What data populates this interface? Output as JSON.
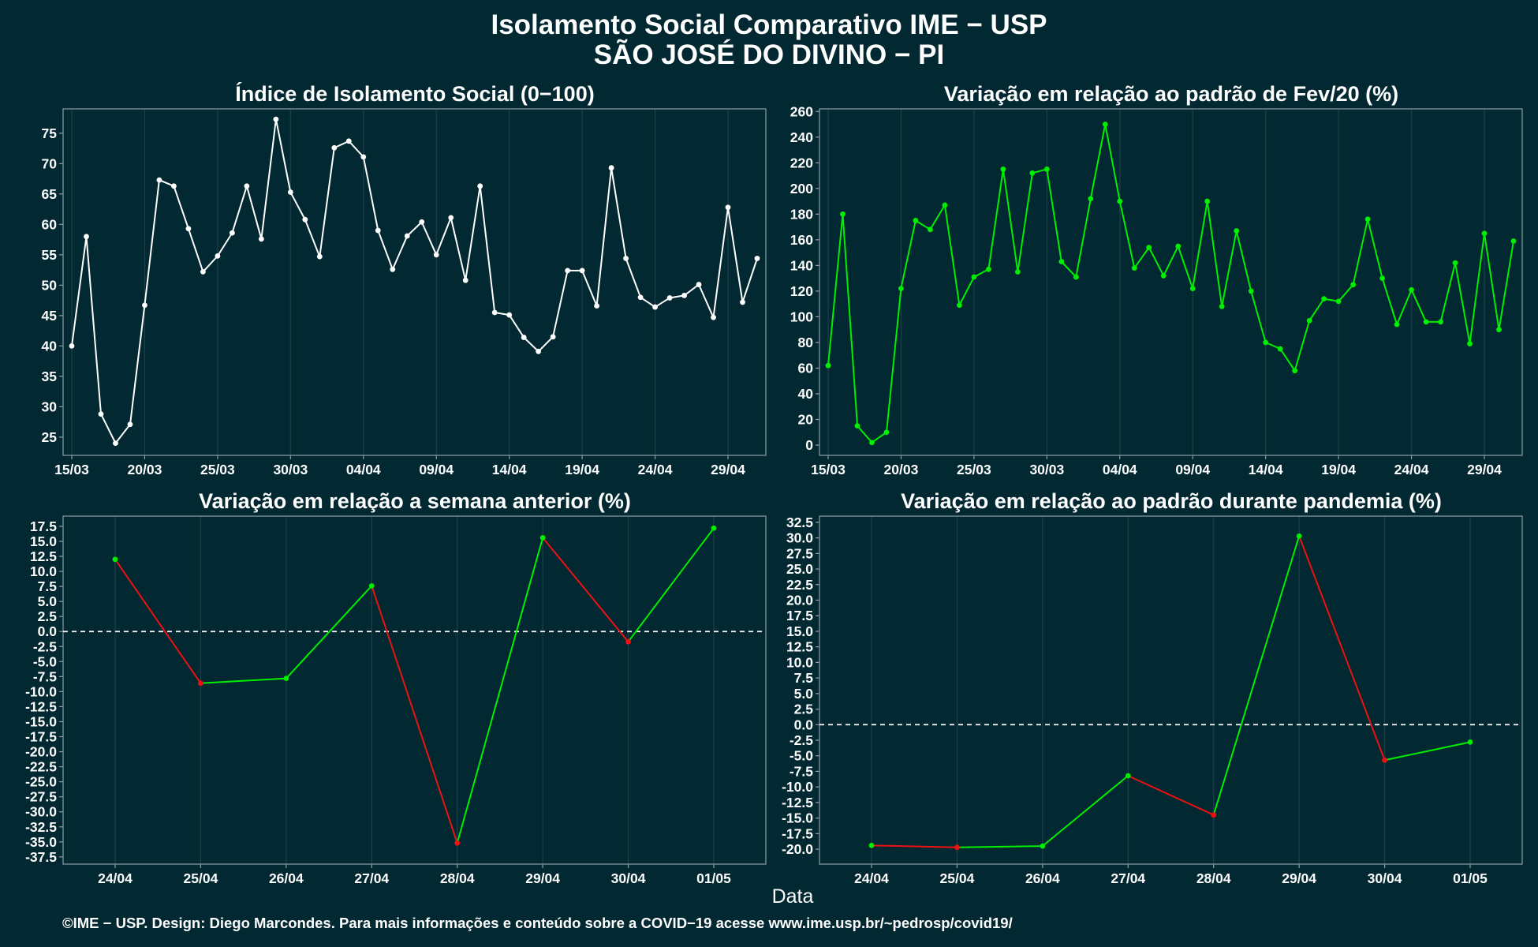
{
  "title_line1": "Isolamento Social Comparativo IME − USP",
  "title_line2": "SÃO JOSÉ DO DIVINO − PI",
  "x_axis_label": "Data",
  "footer": "©IME − USP. Design: Diego Marcondes. Para mais informações e conteúdo sobre a COVID−19 acesse www.ime.usp.br/~pedrosp/covid19/",
  "colors": {
    "background": "#022832",
    "white_line": "#ffffff",
    "green": "#00ee00",
    "red": "#ee1111",
    "grid": "#1b3e47"
  },
  "chart_data": [
    {
      "type": "line",
      "title": "Índice de Isolamento Social (0−100)",
      "x_start": "15/03",
      "x_ticks": [
        "15/03",
        "20/03",
        "25/03",
        "30/03",
        "04/04",
        "09/04",
        "14/04",
        "19/04",
        "24/04",
        "29/04"
      ],
      "y_ticks": [
        25,
        30,
        35,
        40,
        45,
        50,
        55,
        60,
        65,
        70,
        75
      ],
      "ylim": [
        22,
        79
      ],
      "line_color": "#ffffff",
      "values": [
        40,
        58,
        28.8,
        24,
        27.1,
        46.7,
        67.3,
        66.3,
        59.3,
        52.2,
        54.8,
        58.6,
        66.3,
        57.6,
        77.3,
        65.3,
        60.8,
        54.7,
        72.6,
        73.7,
        71.1,
        59,
        52.6,
        58.1,
        60.4,
        55,
        61.1,
        50.8,
        66.3,
        45.5,
        45.1,
        41.4,
        39.1,
        41.5,
        52.4,
        52.4,
        46.6,
        69.3,
        54.4,
        48,
        46.4,
        47.9,
        48.3,
        50.1,
        44.7,
        62.8,
        47.2,
        54.4
      ]
    },
    {
      "type": "line",
      "title": "Variação em relação ao padrão de Fev/20 (%)",
      "x_start": "15/03",
      "x_ticks": [
        "15/03",
        "20/03",
        "25/03",
        "30/03",
        "04/04",
        "09/04",
        "14/04",
        "19/04",
        "24/04",
        "29/04"
      ],
      "y_ticks": [
        0,
        20,
        40,
        60,
        80,
        100,
        120,
        140,
        160,
        180,
        200,
        220,
        240,
        260
      ],
      "ylim": [
        -8,
        262
      ],
      "line_color": "#00ee00",
      "values": [
        62,
        180,
        15,
        2,
        10,
        122,
        175,
        168,
        187,
        109,
        131,
        137,
        215,
        135,
        212,
        215,
        143,
        131,
        192,
        250,
        190,
        138,
        154,
        132,
        155,
        122,
        190,
        108,
        167,
        120,
        80,
        75,
        58,
        97,
        114,
        112,
        125,
        176,
        130,
        94,
        121,
        96,
        96,
        142,
        79,
        165,
        90,
        159
      ]
    },
    {
      "type": "line",
      "title": "Variação em relação a semana anterior (%)",
      "categories": [
        "24/04",
        "25/04",
        "26/04",
        "27/04",
        "28/04",
        "29/04",
        "30/04",
        "01/05"
      ],
      "values": [
        12,
        -8.6,
        -7.8,
        7.6,
        -35.2,
        15.6,
        -1.7,
        17.2
      ],
      "y_ticks": [
        17.5,
        15,
        12.5,
        10,
        7.5,
        5,
        2.5,
        0,
        -2.5,
        -5,
        -7.5,
        -10,
        -12.5,
        -15,
        -17.5,
        -20,
        -22.5,
        -25,
        -27.5,
        -30,
        -32.5,
        -35,
        -37.5
      ],
      "ylim": [
        -38.7,
        19.2
      ],
      "reference_line": 0,
      "line_colors": {
        "increase": "#00ee00",
        "decrease": "#ee1111"
      }
    },
    {
      "type": "line",
      "title": "Variação em relação ao padrão durante pandemia (%)",
      "categories": [
        "24/04",
        "25/04",
        "26/04",
        "27/04",
        "28/04",
        "29/04",
        "30/04",
        "01/05"
      ],
      "values": [
        -19.4,
        -19.7,
        -19.5,
        -8.2,
        -14.5,
        30.3,
        -5.7,
        -2.8
      ],
      "y_ticks": [
        32.5,
        30,
        27.5,
        25,
        22.5,
        20,
        17.5,
        15,
        12.5,
        10,
        7.5,
        5,
        2.5,
        0,
        -2.5,
        -5,
        -7.5,
        -10,
        -12.5,
        -15,
        -17.5,
        -20
      ],
      "ylim": [
        -22.4,
        33.5
      ],
      "reference_line": 0,
      "line_colors": {
        "increase": "#00ee00",
        "decrease": "#ee1111"
      }
    }
  ]
}
